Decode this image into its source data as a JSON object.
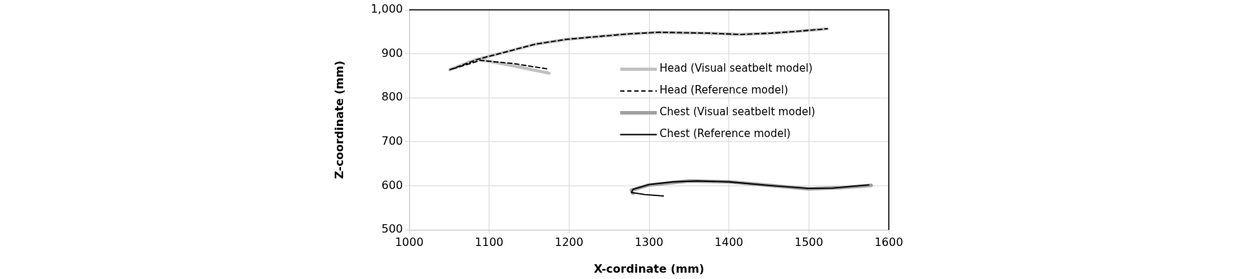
{
  "chart_data": {
    "type": "line",
    "xlabel": "X-cordinate (mm)",
    "ylabel": "Z-coordinate (mm)",
    "xlim": [
      1000,
      1600
    ],
    "xticks": [
      1000,
      1100,
      1200,
      1300,
      1400,
      1500,
      1600
    ],
    "ylim": [
      500,
      1000
    ],
    "yticks": [
      {
        "value": 500,
        "label": "500"
      },
      {
        "value": 600,
        "label": "600"
      },
      {
        "value": 700,
        "label": "700"
      },
      {
        "value": 800,
        "label": "800"
      },
      {
        "value": 900,
        "label": "900"
      },
      {
        "value": 1000,
        "label": "1,000"
      }
    ],
    "grid": true,
    "legend": "right",
    "marker": "none",
    "series": [
      {
        "name": "Head (Visual seatbelt model)",
        "color": "#c0c0c0",
        "line_style": "solid",
        "x": [
          1175,
          1130,
          1085,
          1051,
          1085,
          1099,
          1158,
          1197,
          1272,
          1311,
          1374,
          1414,
          1453,
          1484,
          1523
        ],
        "values": [
          856,
          873,
          888,
          864,
          887,
          894,
          922,
          933,
          945,
          949,
          947,
          944,
          947,
          951,
          957
        ]
      },
      {
        "name": "Head (Reference model)",
        "color": "#000000",
        "line_style": "dashed",
        "x": [
          1172,
          1130,
          1089,
          1051,
          1085,
          1099,
          1158,
          1197,
          1272,
          1311,
          1374,
          1414,
          1453,
          1484,
          1523
        ],
        "values": [
          866,
          878,
          885,
          864,
          887,
          894,
          922,
          933,
          945,
          949,
          947,
          944,
          947,
          951,
          957
        ]
      },
      {
        "name": "Chest (Visual seatbelt model)",
        "color": "#a0a0a0",
        "line_style": "solid",
        "x": [
          1280,
          1278,
          1300,
          1350,
          1400,
          1450,
          1500,
          1540,
          1578
        ],
        "values": [
          583,
          590,
          602,
          611,
          609,
          601,
          593,
          596,
          601
        ]
      },
      {
        "name": "Chest (Reference model)",
        "color": "#000000",
        "line_style": "solid",
        "x": [
          1318,
          1295,
          1278,
          1280,
          1300,
          1330,
          1360,
          1400,
          1450,
          1500,
          1530,
          1575
        ],
        "values": [
          577,
          580,
          585,
          592,
          603,
          609,
          611,
          609,
          601,
          594,
          595,
          602
        ]
      }
    ]
  }
}
